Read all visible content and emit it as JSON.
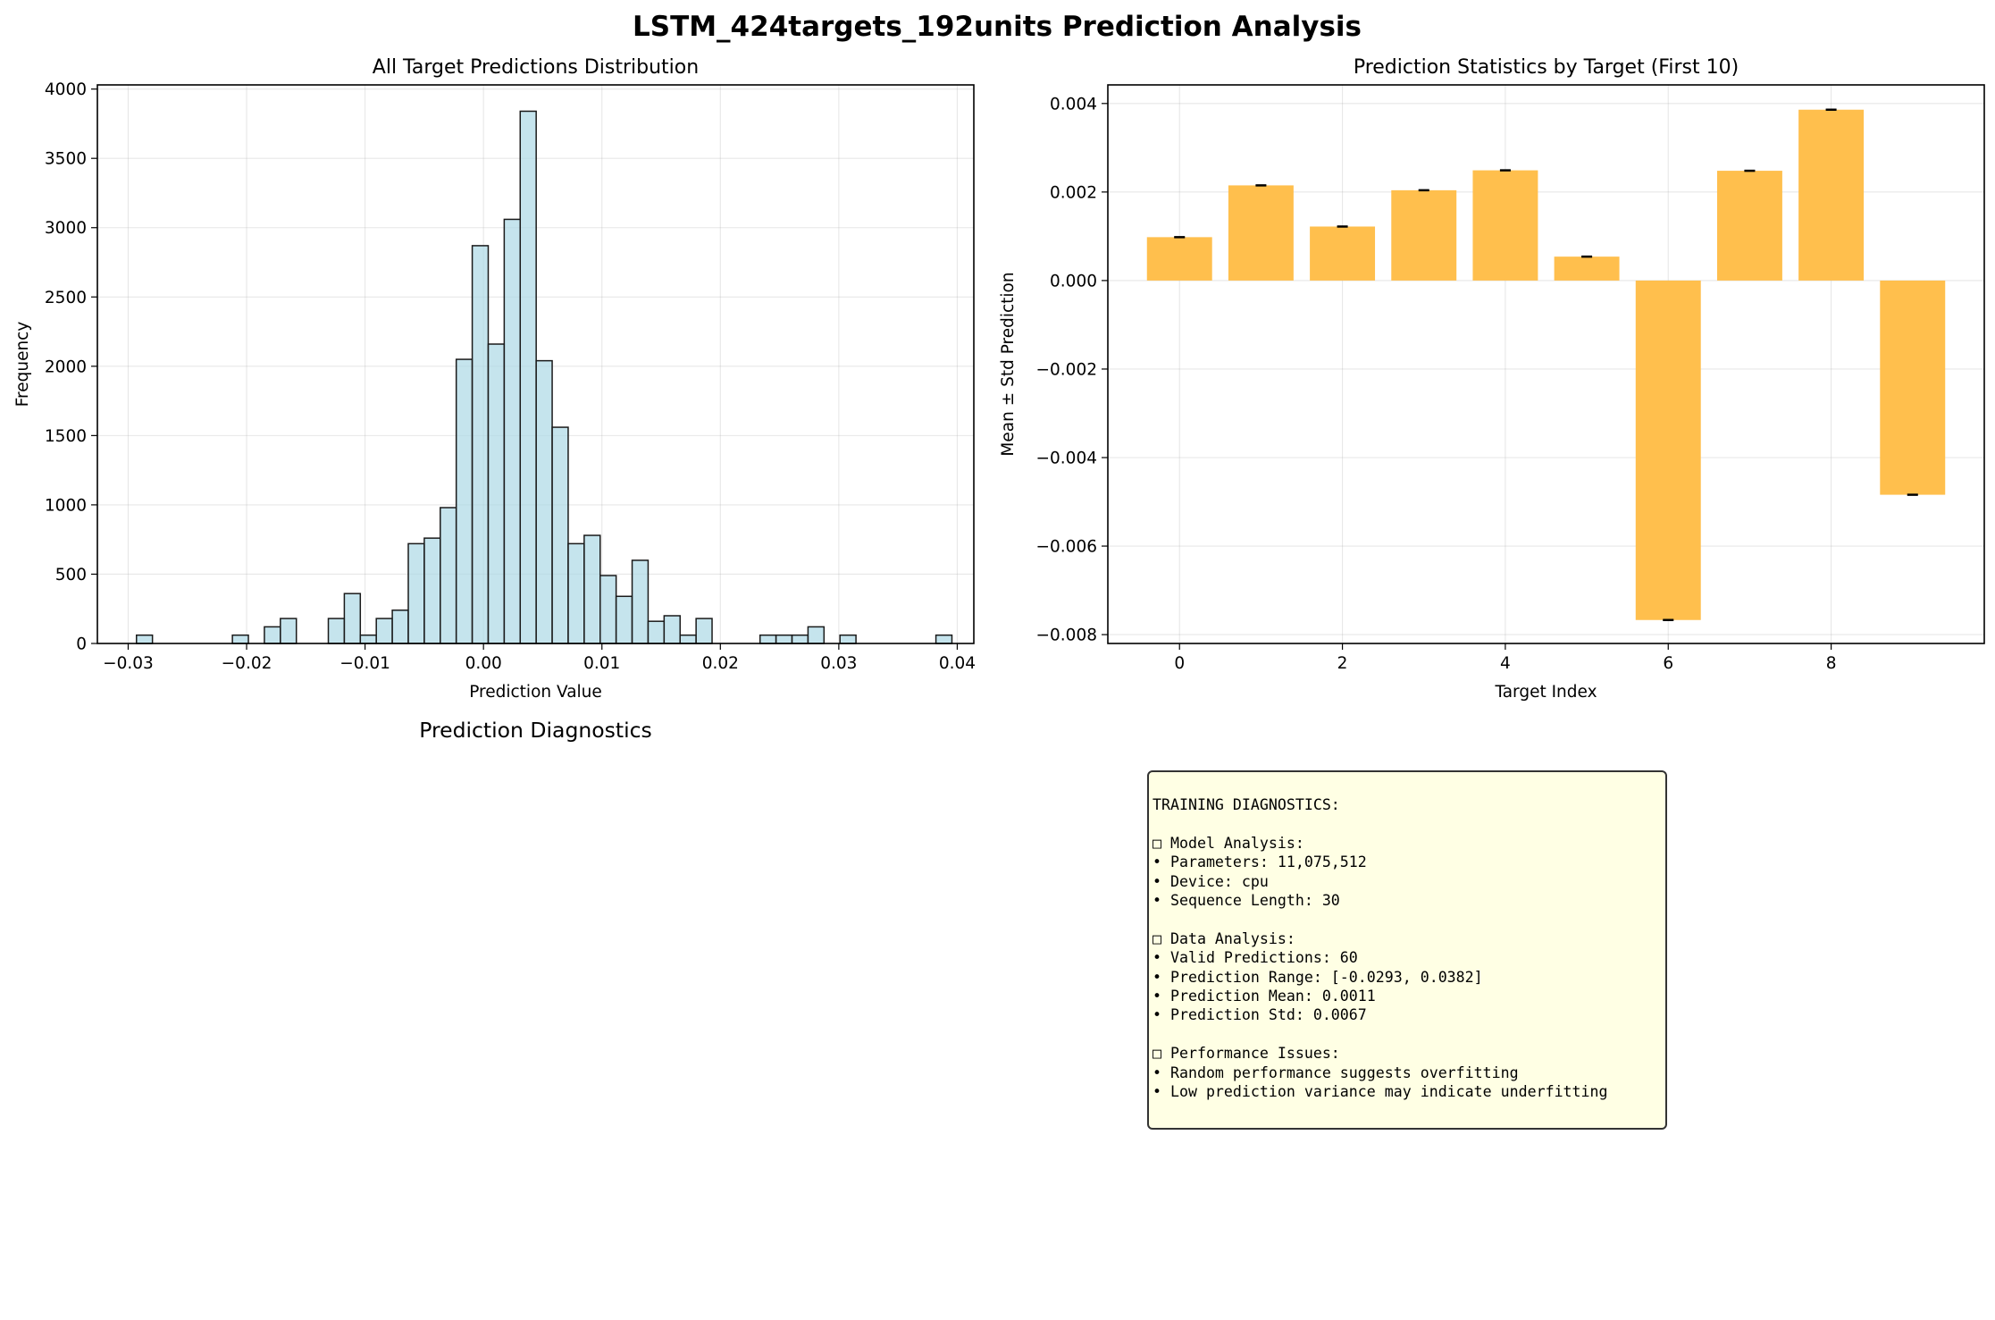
{
  "figure": {
    "suptitle": "LSTM_424targets_192units Prediction Analysis",
    "subplot3_title": "Prediction Diagnostics"
  },
  "chart_data": [
    {
      "type": "histogram",
      "title": "All Target Predictions Distribution",
      "xlabel": "Prediction Value",
      "ylabel": "Frequency",
      "xlim": [
        -0.0326,
        0.0414
      ],
      "ylim": [
        0,
        4030
      ],
      "xticks": [
        -0.03,
        -0.02,
        -0.01,
        0.0,
        0.01,
        0.02,
        0.03,
        0.04
      ],
      "xtick_labels": [
        "−0.03",
        "−0.02",
        "−0.01",
        "0.00",
        "0.01",
        "0.02",
        "0.03",
        "0.04"
      ],
      "yticks": [
        0,
        500,
        1000,
        1500,
        2000,
        2500,
        3000,
        3500,
        4000
      ],
      "ytick_labels": [
        "0",
        "500",
        "1000",
        "1500",
        "2000",
        "2500",
        "3000",
        "3500",
        "4000"
      ],
      "grid": true,
      "color": "#add8e6",
      "edge_color": "#1a1a1a",
      "bin_start": -0.0293,
      "bin_width": 0.00135,
      "counts": [
        60,
        0,
        0,
        0,
        0,
        0,
        60,
        0,
        120,
        180,
        0,
        0,
        180,
        360,
        60,
        180,
        240,
        720,
        760,
        980,
        2050,
        2870,
        2160,
        3060,
        3840,
        2040,
        1560,
        720,
        780,
        490,
        340,
        600,
        160,
        200,
        60,
        180,
        0,
        0,
        0,
        60,
        60,
        60,
        120,
        0,
        60,
        0,
        0,
        0,
        0,
        0,
        60
      ]
    },
    {
      "type": "bar",
      "title": "Prediction Statistics by Target (First 10)",
      "xlabel": "Target Index",
      "ylabel": "Mean ± Std Prediction",
      "categories": [
        0,
        1,
        2,
        3,
        4,
        5,
        6,
        7,
        8,
        9
      ],
      "values": [
        0.00098,
        0.00215,
        0.00122,
        0.00204,
        0.00249,
        0.00054,
        -0.00767,
        0.00248,
        0.00386,
        -0.00484
      ],
      "errors": [
        1e-05,
        1e-05,
        1e-05,
        1e-05,
        1e-05,
        1e-05,
        1e-05,
        1e-05,
        1e-05,
        1e-05
      ],
      "xlim": [
        -0.88,
        9.88
      ],
      "ylim": [
        -0.0082,
        0.00442
      ],
      "xticks": [
        0,
        2,
        4,
        6,
        8
      ],
      "xtick_labels": [
        "0",
        "2",
        "4",
        "6",
        "8"
      ],
      "yticks": [
        -0.008,
        -0.006,
        -0.004,
        -0.002,
        0.0,
        0.002,
        0.004
      ],
      "ytick_labels": [
        "−0.008",
        "−0.006",
        "−0.004",
        "−0.002",
        "0.000",
        "0.002",
        "0.004"
      ],
      "grid": true,
      "color": "#ffbf4d",
      "error_color": "#000000"
    }
  ],
  "diagnostics": {
    "text": "TRAINING DIAGNOSTICS:\n\n□ Model Analysis:\n• Parameters: 11,075,512\n• Device: cpu\n• Sequence Length: 30\n\n□ Data Analysis:\n• Valid Predictions: 60\n• Prediction Range: [-0.0293, 0.0382]\n• Prediction Mean: 0.0011\n• Prediction Std: 0.0067\n\n□ Performance Issues:\n• Random performance suggests overfitting\n• Low prediction variance may indicate underfitting"
  }
}
